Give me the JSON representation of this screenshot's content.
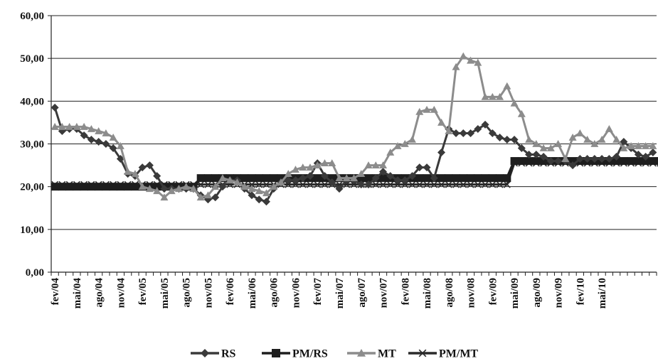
{
  "chart_data": {
    "type": "line",
    "title": "",
    "xlabel": "",
    "ylabel": "",
    "ylim": [
      0,
      60
    ],
    "grid": true,
    "legend_position": "bottom",
    "y_ticks": [
      "0,00",
      "10,00",
      "20,00",
      "30,00",
      "40,00",
      "50,00",
      "60,00"
    ],
    "x_tick_labels": [
      "fev/04",
      "mai/04",
      "ago/04",
      "nov/04",
      "fev/05",
      "mai/05",
      "ago/05",
      "nov/05",
      "fev/06",
      "mai/06",
      "ago/06",
      "nov/06",
      "fev/07",
      "mai/07",
      "ago/07",
      "nov/07",
      "fev/08",
      "mai/08",
      "ago/08",
      "nov/08",
      "fev/09",
      "mai/09",
      "ago/09",
      "nov/09",
      "fev/10",
      "mai/10"
    ],
    "series": [
      {
        "name": "RS",
        "color": "#3a3a3a",
        "marker": "diamond",
        "values": [
          38.5,
          33,
          33.5,
          33.5,
          32,
          31,
          30.5,
          30,
          29,
          26.5,
          23,
          22.5,
          24.5,
          25,
          22.5,
          19.5,
          19.5,
          19.5,
          19.5,
          19.5,
          18,
          17,
          17.5,
          20,
          21.5,
          21.5,
          19.5,
          18,
          17,
          16.5,
          19.5,
          21,
          21.5,
          21.5,
          22,
          22.5,
          25.5,
          22.5,
          21,
          19.5,
          21.5,
          21.5,
          20.5,
          20.5,
          22,
          23.5,
          22.5,
          21.5,
          21.5,
          22.5,
          24.5,
          24.5,
          22,
          28,
          33.5,
          32.5,
          32.5,
          32.5,
          33.5,
          34.5,
          32.5,
          31.5,
          31,
          31,
          29,
          27.5,
          27.5,
          27,
          26,
          26,
          26,
          25,
          26.5,
          26.5,
          26.5,
          26.5,
          26.5,
          27,
          30.5,
          29,
          27.5,
          27,
          28
        ]
      },
      {
        "name": "PM/RS",
        "color": "#1e1e1e",
        "marker": "square",
        "values": [
          20,
          20,
          20,
          20,
          20,
          20,
          20,
          20,
          20,
          20,
          20,
          20,
          20,
          20,
          20,
          20,
          20,
          20,
          20,
          20,
          22,
          22,
          22,
          22,
          22,
          22,
          22,
          22,
          22,
          22,
          22,
          22,
          22,
          22,
          22,
          22,
          22,
          22,
          22,
          22,
          22,
          22,
          22,
          22,
          22,
          22,
          22,
          22,
          22,
          22,
          22,
          22,
          22,
          22,
          22,
          22,
          22,
          22,
          22,
          22,
          22,
          22,
          22,
          26,
          26,
          26,
          26,
          26,
          26,
          26,
          26,
          26,
          26,
          26,
          26,
          26,
          26,
          26,
          26,
          26,
          26,
          26,
          26,
          26
        ]
      },
      {
        "name": "MT",
        "color": "#8c8c8c",
        "marker": "triangle",
        "values": [
          34,
          34,
          34,
          34,
          34,
          33.5,
          33,
          32.5,
          31.5,
          29.5,
          23.5,
          23,
          20,
          19.5,
          19,
          17.5,
          19,
          19.5,
          20,
          19.5,
          17.5,
          18,
          20,
          22,
          21.5,
          21,
          20,
          19.5,
          19,
          18.5,
          20,
          21,
          23,
          24,
          24.5,
          24.5,
          25,
          25.5,
          25.5,
          22,
          22,
          22,
          23,
          25,
          25,
          25,
          28,
          29.5,
          30,
          31,
          37.5,
          38,
          38,
          35,
          33,
          48,
          50.5,
          49.5,
          49,
          41,
          41,
          41,
          43.5,
          39.5,
          37,
          31,
          30,
          29,
          29,
          30,
          26.5,
          31.5,
          32.5,
          31,
          30,
          31,
          33.5,
          31,
          29,
          29.5,
          29.5,
          29.5,
          29.5
        ]
      },
      {
        "name": "PM/MT",
        "color": "#2a2a2a",
        "marker": "x",
        "values": [
          20.5,
          20.5,
          20.5,
          20.5,
          20.5,
          20.5,
          20.5,
          20.5,
          20.5,
          20.5,
          20.5,
          20.5,
          20.5,
          20.5,
          20.5,
          20.5,
          20.5,
          20.5,
          20.5,
          20.5,
          20.5,
          20.5,
          20.5,
          20.5,
          20.5,
          20.5,
          20.5,
          20.5,
          20.5,
          20.5,
          20.5,
          20.5,
          20.5,
          20.5,
          20.5,
          20.5,
          20.5,
          20.5,
          20.5,
          20.5,
          20.5,
          20.5,
          20.5,
          20.5,
          20.5,
          20.5,
          20.5,
          20.5,
          20.5,
          20.5,
          20.5,
          20.5,
          20.5,
          20.5,
          20.5,
          20.5,
          20.5,
          20.5,
          20.5,
          20.5,
          20.5,
          20.5,
          20.5,
          25.5,
          25.5,
          25.5,
          25.5,
          25.5,
          25.5,
          25.5,
          25.5,
          25.5,
          25.5,
          25.5,
          25.5,
          25.5,
          25.5,
          25.5,
          25.5,
          25.5,
          25.5,
          25.5,
          25.5,
          25.5
        ]
      }
    ]
  }
}
